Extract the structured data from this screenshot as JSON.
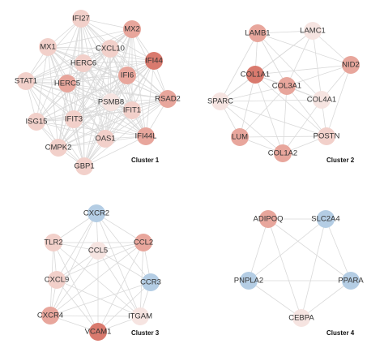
{
  "colors": {
    "edge": "#d9d9d9",
    "label": "#333333",
    "scale": {
      "strong_red": "#d97a6e",
      "medium_red": "#e8a69c",
      "light_red": "#f2d0ca",
      "pale": "#f6e4e1",
      "blue": "#b4cde4"
    }
  },
  "clusters": [
    {
      "label": "Cluster 1",
      "nodes": [
        {
          "id": "IFI27",
          "level": "light_red"
        },
        {
          "id": "MX2",
          "level": "medium_red"
        },
        {
          "id": "MX1",
          "level": "light_red"
        },
        {
          "id": "CXCL10",
          "level": "light_red"
        },
        {
          "id": "IFI44",
          "level": "strong_red"
        },
        {
          "id": "HERC6",
          "level": "light_red"
        },
        {
          "id": "STAT1",
          "level": "light_red"
        },
        {
          "id": "HERC5",
          "level": "medium_red"
        },
        {
          "id": "IFI6",
          "level": "medium_red"
        },
        {
          "id": "RSAD2",
          "level": "medium_red"
        },
        {
          "id": "PSMB8",
          "level": "pale"
        },
        {
          "id": "ISG15",
          "level": "light_red"
        },
        {
          "id": "IFIT3",
          "level": "light_red"
        },
        {
          "id": "IFIT1",
          "level": "light_red"
        },
        {
          "id": "OAS1",
          "level": "light_red"
        },
        {
          "id": "IFI44L",
          "level": "medium_red"
        },
        {
          "id": "CMPK2",
          "level": "light_red"
        },
        {
          "id": "GBP1",
          "level": "light_red"
        }
      ]
    },
    {
      "label": "Cluster 2",
      "nodes": [
        {
          "id": "LAMB1",
          "level": "medium_red"
        },
        {
          "id": "LAMC1",
          "level": "pale"
        },
        {
          "id": "NID2",
          "level": "medium_red"
        },
        {
          "id": "COL1A1",
          "level": "strong_red"
        },
        {
          "id": "COL3A1",
          "level": "medium_red"
        },
        {
          "id": "COL4A1",
          "level": "pale"
        },
        {
          "id": "SPARC",
          "level": "pale"
        },
        {
          "id": "LUM",
          "level": "medium_red"
        },
        {
          "id": "POSTN",
          "level": "light_red"
        },
        {
          "id": "COL1A2",
          "level": "medium_red"
        }
      ]
    },
    {
      "label": "Cluster 3",
      "nodes": [
        {
          "id": "CXCR2",
          "level": "blue"
        },
        {
          "id": "TLR2",
          "level": "light_red"
        },
        {
          "id": "CCL2",
          "level": "medium_red"
        },
        {
          "id": "CCL5",
          "level": "pale"
        },
        {
          "id": "CCR3",
          "level": "blue"
        },
        {
          "id": "CXCL9",
          "level": "light_red"
        },
        {
          "id": "CXCR4",
          "level": "medium_red"
        },
        {
          "id": "ITGAM",
          "level": "pale"
        },
        {
          "id": "VCAM1",
          "level": "strong_red"
        }
      ]
    },
    {
      "label": "Cluster 4",
      "nodes": [
        {
          "id": "ADIPOQ",
          "level": "medium_red"
        },
        {
          "id": "SLC2A4",
          "level": "blue"
        },
        {
          "id": "PNPLA2",
          "level": "blue"
        },
        {
          "id": "PPARA",
          "level": "blue"
        },
        {
          "id": "CEBPA",
          "level": "pale"
        }
      ]
    }
  ]
}
